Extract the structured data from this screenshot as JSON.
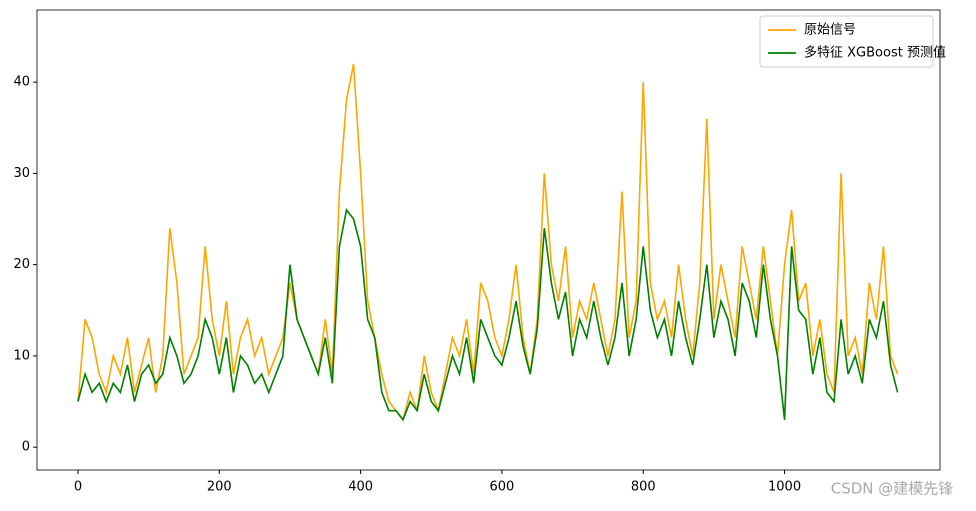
{
  "chart_data": {
    "type": "line",
    "x": [
      0,
      10,
      20,
      30,
      40,
      50,
      60,
      70,
      80,
      90,
      100,
      110,
      120,
      130,
      140,
      150,
      160,
      170,
      180,
      190,
      200,
      210,
      220,
      230,
      240,
      250,
      260,
      270,
      280,
      290,
      300,
      310,
      320,
      330,
      340,
      350,
      360,
      370,
      380,
      390,
      400,
      410,
      420,
      430,
      440,
      450,
      460,
      470,
      480,
      490,
      500,
      510,
      520,
      530,
      540,
      550,
      560,
      570,
      580,
      590,
      600,
      610,
      620,
      630,
      640,
      650,
      660,
      670,
      680,
      690,
      700,
      710,
      720,
      730,
      740,
      750,
      760,
      770,
      780,
      790,
      800,
      810,
      820,
      830,
      840,
      850,
      860,
      870,
      880,
      890,
      900,
      910,
      920,
      930,
      940,
      950,
      960,
      970,
      980,
      990,
      1000,
      1010,
      1020,
      1030,
      1040,
      1050,
      1060,
      1070,
      1080,
      1090,
      1100,
      1110,
      1120,
      1130,
      1140,
      1150,
      1160
    ],
    "series": [
      {
        "name": "原始信号",
        "color": "#ffa500",
        "values": [
          5,
          14,
          12,
          8,
          6,
          10,
          8,
          12,
          6,
          9,
          12,
          6,
          10,
          24,
          18,
          8,
          10,
          12,
          22,
          14,
          10,
          16,
          8,
          12,
          14,
          10,
          12,
          8,
          10,
          12,
          18,
          14,
          12,
          10,
          8,
          14,
          8,
          28,
          38,
          42,
          30,
          16,
          12,
          8,
          5,
          4,
          3,
          6,
          4,
          10,
          6,
          4,
          8,
          12,
          10,
          14,
          8,
          18,
          16,
          12,
          10,
          14,
          20,
          12,
          8,
          14,
          30,
          20,
          16,
          22,
          12,
          16,
          14,
          18,
          14,
          10,
          14,
          28,
          12,
          16,
          40,
          18,
          14,
          16,
          12,
          20,
          14,
          10,
          18,
          36,
          14,
          20,
          16,
          12,
          22,
          18,
          14,
          22,
          16,
          10,
          20,
          26,
          16,
          18,
          10,
          14,
          8,
          6,
          30,
          10,
          12,
          8,
          18,
          14,
          22,
          10,
          8
        ]
      },
      {
        "name": "多特征 XGBoost 预测值",
        "color": "#008000",
        "values": [
          5,
          8,
          6,
          7,
          5,
          7,
          6,
          9,
          5,
          8,
          9,
          7,
          8,
          12,
          10,
          7,
          8,
          10,
          14,
          12,
          8,
          12,
          6,
          10,
          9,
          7,
          8,
          6,
          8,
          10,
          20,
          14,
          12,
          10,
          8,
          12,
          7,
          22,
          26,
          25,
          22,
          14,
          12,
          6,
          4,
          4,
          3,
          5,
          4,
          8,
          5,
          4,
          7,
          10,
          8,
          12,
          7,
          14,
          12,
          10,
          9,
          12,
          16,
          11,
          8,
          13,
          24,
          18,
          14,
          17,
          10,
          14,
          12,
          16,
          12,
          9,
          12,
          18,
          10,
          14,
          22,
          15,
          12,
          14,
          10,
          16,
          12,
          9,
          14,
          20,
          12,
          16,
          14,
          10,
          18,
          16,
          12,
          20,
          14,
          10,
          3,
          22,
          15,
          14,
          8,
          12,
          6,
          5,
          14,
          8,
          10,
          7,
          14,
          12,
          16,
          9,
          6
        ]
      }
    ],
    "xlim": [
      -58,
      1220
    ],
    "ylim": [
      -2.5,
      47.9
    ],
    "xticks": [
      0,
      200,
      400,
      600,
      800,
      1000
    ],
    "yticks": [
      0,
      10,
      20,
      30,
      40
    ],
    "legend": "upper right"
  },
  "watermark": "CSDN @建模先锋"
}
